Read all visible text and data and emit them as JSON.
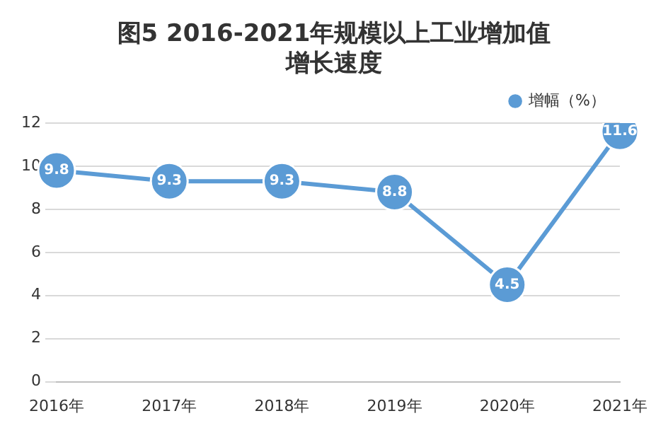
{
  "chart_data": {
    "type": "line",
    "title": "图5 2016-2021年规模以上工业增加值增长速度",
    "categories": [
      "2016年",
      "2017年",
      "2018年",
      "2019年",
      "2020年",
      "2021年"
    ],
    "series": [
      {
        "name": "增幅（%）",
        "color": "#5b9bd5",
        "values": [
          9.8,
          9.3,
          9.3,
          8.8,
          4.5,
          11.6
        ]
      }
    ],
    "ylim": [
      0,
      12
    ],
    "yticks": [
      0,
      2,
      4,
      6,
      8,
      10,
      12
    ],
    "grid": "y",
    "legend": "top right",
    "marker": "circle",
    "line_style": "solid",
    "data_labels": true
  }
}
